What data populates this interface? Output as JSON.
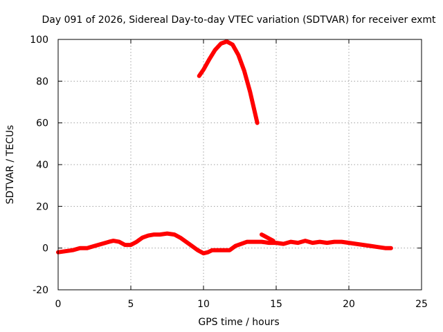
{
  "chart_data": {
    "type": "line",
    "title": "Day 091 of 2026, Sidereal Day-to-day VTEC variation (SDTVAR) for receiver exmt",
    "xlabel": "GPS time / hours",
    "ylabel": "SDTVAR / TECUs",
    "xlim": [
      0,
      25
    ],
    "ylim": [
      -20,
      100
    ],
    "grid": true,
    "x_ticks": [
      0,
      5,
      10,
      15,
      20,
      25
    ],
    "y_ticks": [
      -20,
      0,
      20,
      40,
      60,
      80,
      100
    ],
    "x_tick_labels": [
      "0",
      "5",
      "10",
      "15",
      "20",
      "25"
    ],
    "y_tick_labels": [
      "-20",
      "0",
      "20",
      "40",
      "60",
      "80",
      "100"
    ],
    "series": [
      {
        "name": "SDTVAR segment 1",
        "color": "#ff0000",
        "x": [
          0,
          0.5,
          1,
          1.5,
          2,
          2.5,
          3,
          3.5,
          3.8,
          4.2,
          4.6,
          5,
          5.4,
          5.8,
          6.2,
          6.6,
          7,
          7.5,
          8,
          8.4,
          8.8,
          9.2,
          9.6,
          10,
          10.3,
          10.6,
          11,
          11.4,
          11.8,
          12.2,
          12.6,
          13,
          13.5,
          14,
          14.5,
          15,
          15.5,
          16,
          16.5,
          17,
          17.5,
          18,
          18.5,
          19,
          19.5,
          20,
          20.5,
          21,
          21.5,
          22,
          22.5,
          22.9
        ],
        "y": [
          -2,
          -1.5,
          -1,
          0,
          0,
          1,
          2,
          3,
          3.5,
          3,
          1.5,
          1.5,
          3,
          5,
          6,
          6.5,
          6.5,
          7,
          6.5,
          5,
          3,
          1,
          -1,
          -2.5,
          -2,
          -1,
          -1,
          -1,
          -1,
          1,
          2,
          3,
          3,
          3,
          2.5,
          2.5,
          2,
          3,
          2.5,
          3.5,
          2.5,
          3,
          2.5,
          3,
          3,
          2.5,
          2,
          1.5,
          1,
          0.5,
          0,
          0
        ]
      },
      {
        "name": "SDTVAR segment 2",
        "color": "#ff0000",
        "x": [
          9.7,
          10,
          10.4,
          10.8,
          11.2,
          11.6,
          12,
          12.4,
          12.8,
          13.2,
          13.5,
          13.7
        ],
        "y": [
          82.5,
          85.5,
          90.5,
          95,
          98,
          99,
          97.5,
          92.5,
          85,
          75,
          66,
          60
        ]
      },
      {
        "name": "SDTVAR segment 3",
        "color": "#ff0000",
        "x": [
          14,
          14.4,
          14.8
        ],
        "y": [
          6.5,
          5,
          3.5
        ]
      }
    ]
  }
}
